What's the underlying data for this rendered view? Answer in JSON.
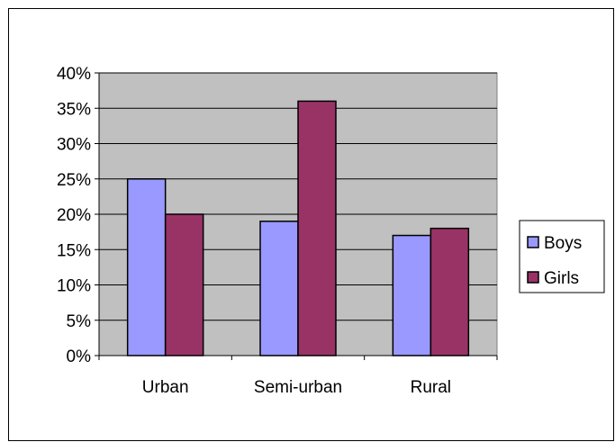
{
  "chart_data": {
    "type": "bar",
    "title": "",
    "xlabel": "",
    "ylabel": "",
    "categories": [
      "Urban",
      "Semi-urban",
      "Rural"
    ],
    "series": [
      {
        "name": "Boys",
        "values": [
          25,
          19,
          17
        ],
        "color": "#9999FF"
      },
      {
        "name": "Girls",
        "values": [
          20,
          36,
          18
        ],
        "color": "#993366"
      }
    ],
    "ylim": [
      0,
      40
    ],
    "yticks": [
      0,
      5,
      10,
      15,
      20,
      25,
      30,
      35,
      40
    ],
    "ytick_labels": [
      "0%",
      "5%",
      "10%",
      "15%",
      "20%",
      "25%",
      "30%",
      "35%",
      "40%"
    ],
    "grid": true,
    "plot_background": "#C0C0C0",
    "legend_position": "right"
  }
}
